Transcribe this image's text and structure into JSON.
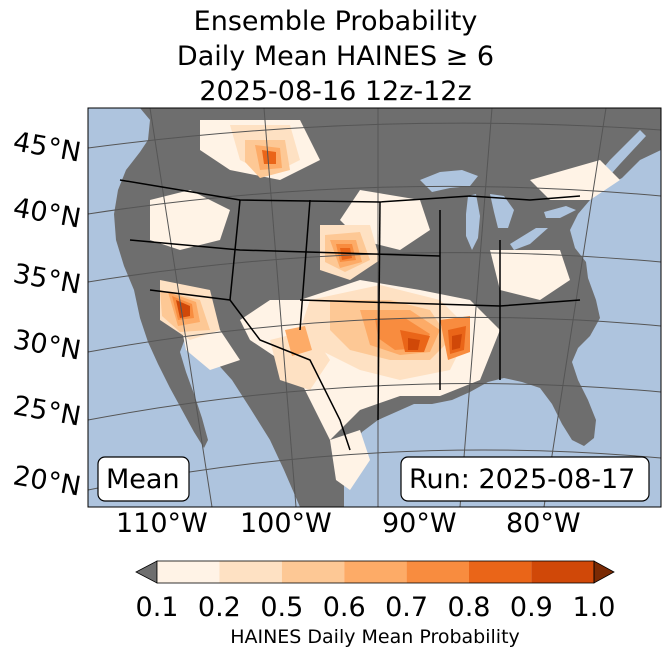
{
  "title": {
    "line1": "Ensemble Probability",
    "line2": "Daily Mean HAINES ≥ 6",
    "line3": "2025-08-16 12z-12z"
  },
  "map": {
    "latitude_labels": [
      "45°N",
      "40°N",
      "35°N",
      "30°N",
      "25°N",
      "20°N"
    ],
    "longitude_labels": [
      "110°W",
      "100°W",
      "90°W",
      "80°W"
    ],
    "left_box": "Mean",
    "right_box": "Run: 2025-08-17",
    "colors": {
      "ocean": "#aec4de",
      "land_no_data": "#6e6e6e",
      "borders": "#000000",
      "graticule": "#555555"
    }
  },
  "colorbar": {
    "ticks": [
      "0.1",
      "0.2",
      "0.5",
      "0.6",
      "0.7",
      "0.8",
      "0.9",
      "1.0"
    ],
    "label": "HAINES Daily Mean Probability",
    "colors": [
      "#fff3e6",
      "#fee1c3",
      "#fdc895",
      "#fdab67",
      "#f88c3f",
      "#ea6518",
      "#d04808"
    ],
    "under_color": "#6e6e6e",
    "over_color": "#7a2a04"
  }
}
